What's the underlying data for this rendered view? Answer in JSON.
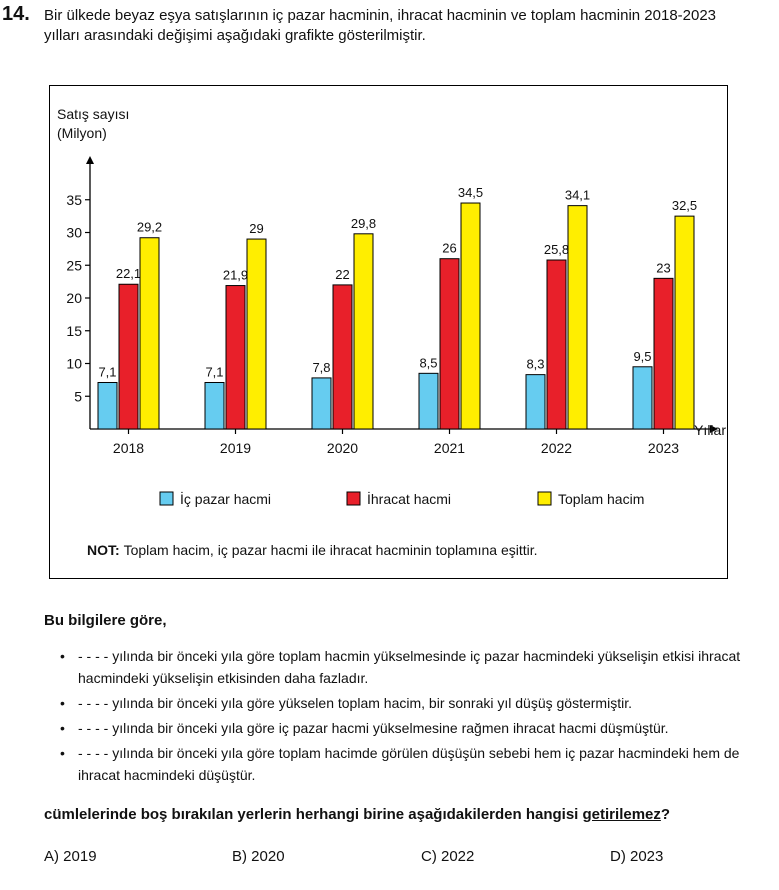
{
  "question": {
    "number": "14.",
    "intro": "Bir ülkede beyaz eşya satışlarının iç pazar hacminin, ihracat hacminin ve toplam hacminin 2018-2023 yılları arasındaki değişimi aşağıdaki grafikte gösterilmiştir.",
    "note_label": "NOT:",
    "note_text": "Toplam hacim, iç pazar hacmi ile ihracat hacminin toplamına eşittir.",
    "lead": "Bu bilgilere göre,",
    "bullets": [
      "- - - - yılında bir önceki yıla göre toplam hacmin yükselmesinde iç pazar hacmindeki yükselişin etkisi ihracat hacmindeki yükselişin etkisinden daha fazladır.",
      "- - - - yılında bir önceki yıla göre yükselen toplam hacim, bir sonraki yıl düşüş göstermiştir.",
      "- - - - yılında bir önceki yıla göre iç pazar hacmi yükselmesine rağmen ihracat hacmi düşmüştür.",
      "- - - - yılında bir önceki yıla göre toplam hacimde görülen düşüşün sebebi hem iç pazar hacmindeki hem de ihracat hacmindeki düşüştür."
    ],
    "stem_before": "cümlelerinde boş bırakılan yerlerin herhangi birine aşağıdakilerden hangisi ",
    "stem_underlined": "getirilemez",
    "stem_after": "?",
    "options": [
      "A) 2019",
      "B) 2020",
      "C) 2022",
      "D) 2023"
    ]
  },
  "chart_data": {
    "type": "bar",
    "ylabel_line1": "Satış sayısı",
    "ylabel_line2": "(Milyon)",
    "xlabel": "Yıllar",
    "categories": [
      "2018",
      "2019",
      "2020",
      "2021",
      "2022",
      "2023"
    ],
    "yticks": [
      5,
      10,
      15,
      20,
      25,
      30,
      35
    ],
    "ylim": [
      0,
      40
    ],
    "legend_placement": "bottom",
    "series": [
      {
        "name": "İç pazar hacmi",
        "color": "#66CCF0",
        "values": [
          7.1,
          7.1,
          7.8,
          8.5,
          8.3,
          9.5
        ],
        "labels": [
          "7,1",
          "7,1",
          "7,8",
          "8,5",
          "8,3",
          "9,5"
        ]
      },
      {
        "name": "İhracat hacmi",
        "color": "#E8202A",
        "values": [
          22.1,
          21.9,
          22,
          26,
          25.8,
          23
        ],
        "labels": [
          "22,1",
          "21,9",
          "22",
          "26",
          "25,8",
          "23"
        ]
      },
      {
        "name": "Toplam hacim",
        "color": "#FFEE00",
        "values": [
          29.2,
          29,
          29.8,
          34.5,
          34.1,
          32.5
        ],
        "labels": [
          "29,2",
          "29",
          "29,8",
          "34,5",
          "34,1",
          "32,5"
        ]
      }
    ]
  }
}
